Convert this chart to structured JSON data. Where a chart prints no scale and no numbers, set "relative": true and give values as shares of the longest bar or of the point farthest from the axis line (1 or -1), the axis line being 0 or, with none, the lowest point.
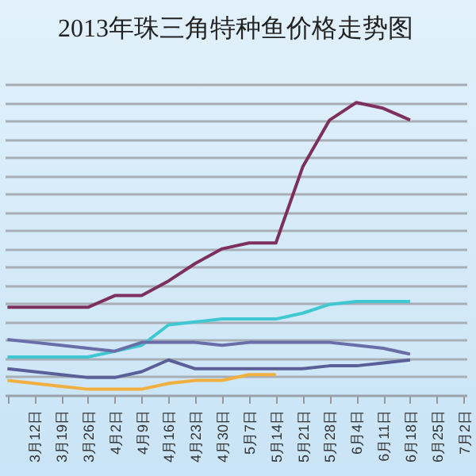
{
  "chart_data": {
    "type": "line",
    "title": "2013年珠三角特种鱼价格走势图",
    "relative": true,
    "grid": true,
    "line_style": "solid",
    "categories": [
      null,
      "3月12日",
      "3月19日",
      "3月26日",
      "4月2日",
      "4月9日",
      "4月16日",
      "4月23日",
      "4月30日",
      "5月7日",
      "5月14日",
      "5月21日",
      "5月28日",
      "6月4日",
      "6月11日",
      "6月18日",
      "6月25日",
      "7月2日"
    ],
    "series": [
      {
        "color": "#7d2f5e",
        "values": [
          0.3,
          0.3,
          0.3,
          0.3,
          0.34,
          0.34,
          0.39,
          0.45,
          0.5,
          0.52,
          0.52,
          0.78,
          0.94,
          1,
          0.98,
          0.94,
          null,
          null
        ]
      },
      {
        "color": "#40c8d2",
        "values": [
          0.13,
          0.13,
          0.13,
          0.13,
          0.15,
          0.17,
          0.24,
          0.25,
          0.26,
          0.26,
          0.26,
          0.28,
          0.31,
          0.32,
          0.32,
          0.32,
          null,
          null
        ]
      },
      {
        "color": "#6a6ea8",
        "values": [
          0.19,
          0.18,
          0.17,
          0.16,
          0.15,
          0.18,
          0.18,
          0.18,
          0.17,
          0.18,
          0.18,
          0.18,
          0.18,
          0.17,
          0.16,
          0.14,
          null,
          null
        ]
      },
      {
        "color": "#5a5f98",
        "values": [
          0.09,
          0.08,
          0.07,
          0.06,
          0.06,
          0.08,
          0.12,
          0.09,
          0.09,
          0.09,
          0.09,
          0.09,
          0.1,
          0.1,
          0.11,
          0.12,
          null,
          null
        ]
      },
      {
        "color": "#f0b040",
        "values": [
          0.05,
          0.04,
          0.03,
          0.02,
          0.02,
          0.02,
          0.04,
          0.05,
          0.05,
          0.07,
          0.07,
          null,
          null,
          null,
          null,
          null,
          null,
          null
        ]
      }
    ]
  }
}
